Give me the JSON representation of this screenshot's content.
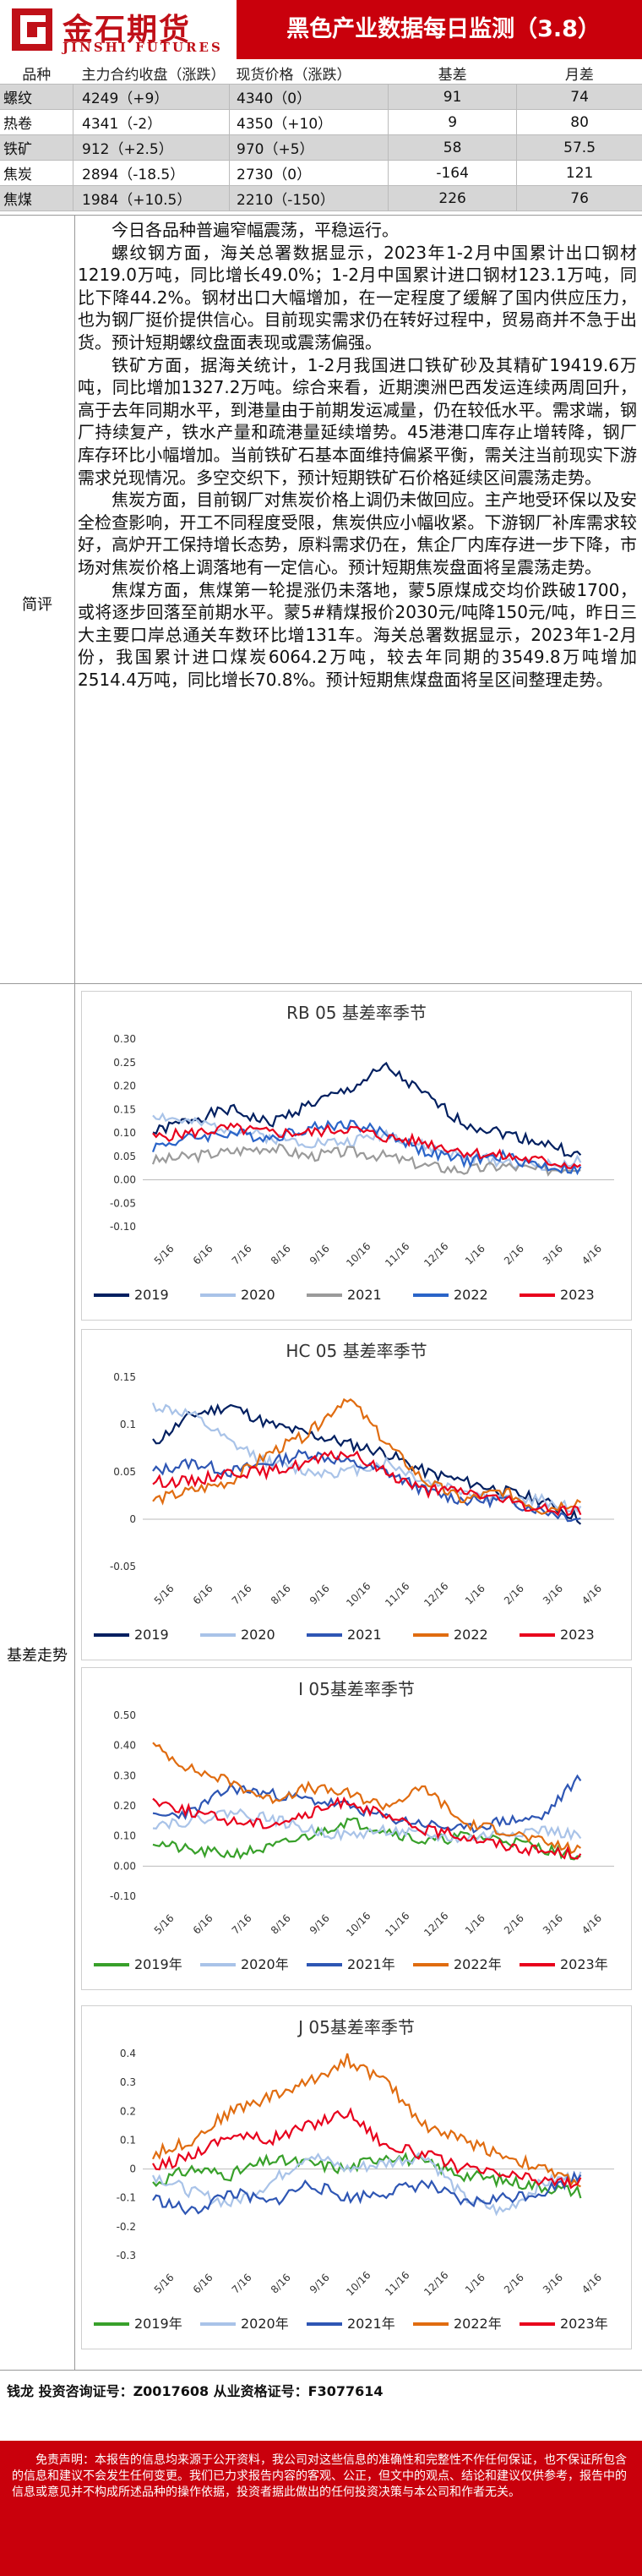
{
  "header": {
    "logo_cn": "金石期货",
    "logo_en": "JINSHI FUTURES",
    "title": "黑色产业数据每日监测（3.8）"
  },
  "table": {
    "headers": [
      "品种",
      "主力合约收盘（涨跌）",
      "现货价格（涨跌）",
      "基差",
      "月差"
    ],
    "rows": [
      {
        "name": "螺纹",
        "close": "4249（+9）",
        "spot": "4340（0）",
        "basis": "91",
        "spread": "74"
      },
      {
        "name": "热卷",
        "close": "4341（-2）",
        "spot": "4350（+10）",
        "basis": "9",
        "spread": "80"
      },
      {
        "name": "铁矿",
        "close": "912（+2.5）",
        "spot": "970（+5）",
        "basis": "58",
        "spread": "57.5"
      },
      {
        "name": "焦炭",
        "close": "2894（-18.5）",
        "spot": "2730（0）",
        "basis": "-164",
        "spread": "121"
      },
      {
        "name": "焦煤",
        "close": "1984（+10.5）",
        "spot": "2210（-150）",
        "basis": "226",
        "spread": "76"
      }
    ]
  },
  "commentary": {
    "label": "简评",
    "paragraphs": [
      "今日各品种普遍窄幅震荡，平稳运行。",
      "螺纹钢方面，海关总署数据显示，2023年1-2月中国累计出口钢材1219.0万吨，同比增长49.0%；1-2月中国累计进口钢材123.1万吨，同比下降44.2%。钢材出口大幅增加，在一定程度了缓解了国内供应压力，也为钢厂挺价提供信心。目前现实需求仍在转好过程中，贸易商并不急于出货。预计短期螺纹盘面表现或震荡偏强。",
      "铁矿方面，据海关统计，1-2月我国进口铁矿砂及其精矿19419.6万吨，同比增加1327.2万吨。综合来看，近期澳洲巴西发运连续两周回升，高于去年同期水平，到港量由于前期发运减量，仍在较低水平。需求端，钢厂持续复产，铁水产量和疏港量延续增势。45港港口库存止增转降，钢厂库存环比小幅增加。当前铁矿石基本面维持偏紧平衡，需关注当前现实下游需求兑现情况。多空交织下，预计短期铁矿石价格延续区间震荡走势。",
      "焦炭方面，目前钢厂对焦炭价格上调仍未做回应。主产地受环保以及安全检查影响，开工不同程度受限，焦炭供应小幅收紧。下游钢厂补库需求较好，高炉开工保持增长态势，原料需求仍在，焦企厂内库存进一步下降，市场对焦炭价格上调落地有一定信心。预计短期焦炭盘面将呈震荡走势。",
      "焦煤方面，焦煤第一轮提涨仍未落地，蒙5原煤成交均价跌破1700，或将逐步回落至前期水平。蒙5#精煤报价2030元/吨降150元/吨，昨日三大主要口岸总通关车数环比增131车。海关总署数据显示，2023年1-2月份，我国累计进口煤炭6064.2万吨，较去年同期的3549.8万吨增加2514.4万吨，同比增长70.8%。预计短期焦煤盘面将呈区间整理走势。"
    ]
  },
  "basis_section_label": "基差走势",
  "colors": {
    "2019": "#001f60",
    "2020": "#a9c3e8",
    "2021": "#9a9a9a",
    "2021b": "#2e56b4",
    "2022": "#2a64c8",
    "2022b": "#e06c10",
    "2023": "#e8001c",
    "2019g": "#38a02a"
  },
  "chart_data": [
    {
      "type": "line",
      "title": "RB 05 基差率季节",
      "x": [
        "5/16",
        "6/16",
        "7/16",
        "8/16",
        "9/16",
        "10/16",
        "11/16",
        "12/16",
        "1/16",
        "2/16",
        "3/16",
        "4/16"
      ],
      "ylim": [
        -0.1,
        0.3
      ],
      "yticks": [
        "0.30",
        "0.25",
        "0.20",
        "0.15",
        "0.10",
        "0.05",
        "0.00",
        "-0.05",
        "-0.10"
      ],
      "series": [
        {
          "name": "2019",
          "color": "#001f60",
          "values": [
            0.1,
            0.13,
            0.15,
            0.12,
            0.16,
            0.19,
            0.24,
            0.18,
            0.12,
            0.1,
            0.08,
            0.05
          ]
        },
        {
          "name": "2020",
          "color": "#a9c3e8",
          "values": [
            0.14,
            0.12,
            0.11,
            0.09,
            0.08,
            0.08,
            0.1,
            0.07,
            0.05,
            0.04,
            0.03,
            0.04
          ]
        },
        {
          "name": "2021",
          "color": "#9a9a9a",
          "values": [
            0.04,
            0.05,
            0.06,
            0.07,
            0.05,
            0.06,
            0.05,
            0.03,
            0.02,
            0.03,
            0.02,
            0.03
          ]
        },
        {
          "name": "2022",
          "color": "#2a64c8",
          "values": [
            0.07,
            0.09,
            0.1,
            0.09,
            0.11,
            0.12,
            0.1,
            0.06,
            0.04,
            0.05,
            0.03,
            0.02
          ]
        },
        {
          "name": "2023",
          "color": "#e8001c",
          "values": [
            0.09,
            0.1,
            0.11,
            0.1,
            0.1,
            0.11,
            0.09,
            0.08,
            0.06,
            0.05,
            0.04,
            0.03
          ]
        }
      ]
    },
    {
      "type": "line",
      "title": "HC 05 基差率季节",
      "x": [
        "5/16",
        "6/16",
        "7/16",
        "8/16",
        "9/16",
        "10/16",
        "11/16",
        "12/16",
        "1/16",
        "2/16",
        "3/16",
        "4/16"
      ],
      "ylim": [
        -0.05,
        0.15
      ],
      "yticks": [
        "0.15",
        "0.1",
        "0.05",
        "0",
        "-0.05"
      ],
      "series": [
        {
          "name": "2019",
          "color": "#001f60",
          "values": [
            0.08,
            0.11,
            0.12,
            0.1,
            0.09,
            0.08,
            0.07,
            0.05,
            0.04,
            0.03,
            0.02,
            0.0
          ]
        },
        {
          "name": "2020",
          "color": "#a9c3e8",
          "values": [
            0.12,
            0.11,
            0.08,
            0.06,
            0.05,
            0.05,
            0.06,
            0.04,
            0.03,
            0.02,
            0.02,
            0.01
          ]
        },
        {
          "name": "2021",
          "color": "#2e56b4",
          "values": [
            0.05,
            0.06,
            0.05,
            0.06,
            0.07,
            0.06,
            0.05,
            0.03,
            0.02,
            0.02,
            0.01,
            0.0
          ]
        },
        {
          "name": "2022",
          "color": "#e06c10",
          "values": [
            0.02,
            0.03,
            0.04,
            0.07,
            0.09,
            0.13,
            0.08,
            0.04,
            0.02,
            0.03,
            0.01,
            0.02
          ]
        },
        {
          "name": "2023",
          "color": "#e8001c",
          "values": [
            0.04,
            0.04,
            0.05,
            0.05,
            0.06,
            0.07,
            0.05,
            0.03,
            0.03,
            0.02,
            0.01,
            0.01
          ]
        }
      ]
    },
    {
      "type": "line",
      "title": "I 05基差率季节",
      "x": [
        "5/16",
        "6/16",
        "7/16",
        "8/16",
        "9/16",
        "10/16",
        "11/16",
        "12/16",
        "1/16",
        "2/16",
        "3/16",
        "4/16"
      ],
      "ylim": [
        -0.1,
        0.5
      ],
      "yticks": [
        "0.50",
        "0.40",
        "0.30",
        "0.20",
        "0.10",
        "0.00",
        "-0.10"
      ],
      "series": [
        {
          "name": "2019年",
          "color": "#38a02a",
          "values": [
            0.08,
            0.05,
            0.04,
            0.06,
            0.1,
            0.15,
            0.12,
            0.08,
            0.1,
            0.09,
            0.06,
            0.03
          ]
        },
        {
          "name": "2020年",
          "color": "#a9c3e8",
          "values": [
            0.14,
            0.15,
            0.18,
            0.16,
            0.12,
            0.1,
            0.12,
            0.1,
            0.09,
            0.11,
            0.12,
            0.1
          ]
        },
        {
          "name": "2021年",
          "color": "#2e56b4",
          "values": [
            0.16,
            0.18,
            0.26,
            0.24,
            0.22,
            0.2,
            0.16,
            0.14,
            0.12,
            0.15,
            0.16,
            0.3
          ]
        },
        {
          "name": "2022年",
          "color": "#e06c10",
          "values": [
            0.4,
            0.32,
            0.28,
            0.22,
            0.26,
            0.24,
            0.2,
            0.26,
            0.14,
            0.12,
            0.08,
            0.05
          ]
        },
        {
          "name": "2023年",
          "color": "#e8001c",
          "values": [
            0.22,
            0.18,
            0.15,
            0.14,
            0.17,
            0.22,
            0.16,
            0.12,
            0.1,
            0.07,
            0.05,
            0.04
          ]
        }
      ]
    },
    {
      "type": "line",
      "title": "J 05基差率季节",
      "x": [
        "5/16",
        "6/16",
        "7/16",
        "8/16",
        "9/16",
        "10/16",
        "11/16",
        "12/16",
        "1/16",
        "2/16",
        "3/16",
        "4/16"
      ],
      "ylim": [
        -0.3,
        0.4
      ],
      "yticks": [
        "0.4",
        "0.3",
        "0.2",
        "0.1",
        "0",
        "-0.1",
        "-0.2",
        "-0.3"
      ],
      "series": [
        {
          "name": "2019年",
          "color": "#38a02a",
          "values": [
            -0.05,
            0.0,
            -0.02,
            0.03,
            0.02,
            0.0,
            0.05,
            0.02,
            -0.02,
            -0.04,
            -0.06,
            -0.08
          ]
        },
        {
          "name": "2020年",
          "color": "#a9c3e8",
          "values": [
            -0.02,
            -0.08,
            -0.12,
            -0.05,
            0.05,
            0.0,
            0.02,
            0.05,
            -0.1,
            -0.15,
            -0.05,
            -0.02
          ]
        },
        {
          "name": "2021年",
          "color": "#2e56b4",
          "values": [
            -0.1,
            -0.15,
            -0.08,
            -0.12,
            -0.05,
            -0.1,
            -0.08,
            -0.05,
            -0.12,
            -0.1,
            -0.08,
            -0.02
          ]
        },
        {
          "name": "2022年",
          "color": "#e06c10",
          "values": [
            0.05,
            0.1,
            0.2,
            0.25,
            0.3,
            0.38,
            0.3,
            0.15,
            0.1,
            0.05,
            0.0,
            -0.05
          ]
        },
        {
          "name": "2023年",
          "color": "#e8001c",
          "values": [
            0.0,
            0.05,
            0.12,
            0.1,
            0.15,
            0.2,
            0.08,
            0.05,
            0.0,
            -0.02,
            -0.04,
            -0.05
          ]
        }
      ]
    }
  ],
  "footer": {
    "analyst": "钱龙 投资咨询证号：Z0017608 从业资格证号：F3077614",
    "disclaimer": "免责声明：本报告的信息均来源于公开资料，我公司对这些信息的准确性和完整性不作任何保证，也不保证所包含的信息和建议不会发生任何变更。我们已力求报告内容的客观、公正，但文中的观点、结论和建议仅供参考，报告中的信息或意见并不构成所述品种的操作依据，投资者据此做出的任何投资决策与本公司和作者无关。"
  }
}
